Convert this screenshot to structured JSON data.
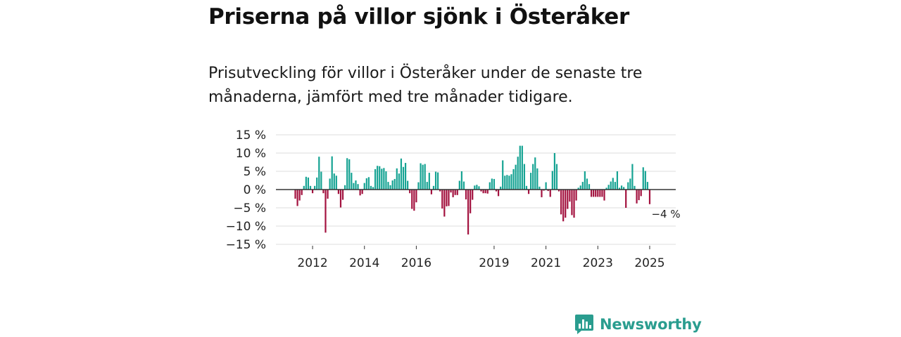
{
  "title": "Priserna på villor sjönk i Österåker",
  "subtitle": "Prisutveckling för villor i Österåker under de senaste tre månaderna, jämfört med tre månader tidigare.",
  "brand": {
    "name": "Newsworthy",
    "color": "#2a9d8f"
  },
  "colors": {
    "positive": "#16a393",
    "negative": "#a3123f",
    "grid": "#dddddd",
    "zero": "#333333"
  },
  "chart_data": {
    "type": "bar",
    "title": "Priserna på villor sjönk i Österåker",
    "ylabel": "",
    "xlabel": "",
    "ylim": [
      -15,
      15
    ],
    "yticks": [
      15,
      10,
      5,
      0,
      -5,
      -10,
      -15
    ],
    "ytick_labels": [
      "15 %",
      "10 %",
      "5 %",
      "0 %",
      "−5 %",
      "−10 %",
      "−15 %"
    ],
    "x_ticks": [
      {
        "label": "2012",
        "index": 8
      },
      {
        "label": "2014",
        "index": 32
      },
      {
        "label": "2016",
        "index": 56
      },
      {
        "label": "2019",
        "index": 92
      },
      {
        "label": "2021",
        "index": 116
      },
      {
        "label": "2023",
        "index": 140
      },
      {
        "label": "2025",
        "index": 164
      }
    ],
    "annotation": {
      "text": "−4 %",
      "index": 171
    },
    "values": [
      -2.5,
      -4.5,
      -3,
      -1.5,
      1,
      3.5,
      3.3,
      1,
      -1,
      1,
      3.3,
      9,
      4.9,
      -1,
      -11.8,
      -2.5,
      3,
      9.1,
      4.4,
      3.8,
      -1.2,
      -4.9,
      -2.8,
      1.2,
      8.6,
      8.3,
      4.6,
      1.8,
      2.5,
      1.5,
      -1.6,
      -1.2,
      1.8,
      3.1,
      3.4,
      1,
      0.7,
      5.6,
      6.5,
      6.4,
      5.7,
      5.9,
      5,
      2.1,
      1.2,
      2.5,
      2.9,
      5.8,
      4.4,
      8.5,
      6.2,
      7.3,
      2.4,
      -1,
      -5.3,
      -5.8,
      -3.5,
      2,
      7.2,
      6.8,
      7,
      2.1,
      4.6,
      -1.3,
      1,
      4.9,
      4.7,
      -0.5,
      -5.2,
      -7.4,
      -4.6,
      -4.5,
      -0.8,
      -2.1,
      -1.5,
      -1.5,
      2.4,
      5,
      2.2,
      -2.7,
      -12.3,
      -6.5,
      -2.8,
      1.1,
      1.3,
      0.9,
      -0.5,
      -1,
      -1,
      -1.1,
      2,
      3,
      2.9,
      -0.5,
      -1.8,
      0.8,
      8,
      3.8,
      4,
      3.8,
      4.2,
      5.6,
      6.8,
      9,
      12,
      12,
      7,
      1,
      -1.2,
      4.6,
      7,
      8.8,
      5.8,
      0.8,
      -2.1,
      -0.3,
      2,
      -0.4,
      -2,
      5.1,
      10,
      7,
      -0.5,
      -6.8,
      -8.7,
      -7.7,
      -5.3,
      -3.3,
      -7,
      -7.7,
      -3,
      0.5,
      1.1,
      2.1,
      5,
      3,
      1.5,
      -2,
      -2,
      -2,
      -2,
      -2,
      -2,
      -3,
      0.5,
      1.3,
      2.2,
      3.2,
      2.1,
      5,
      0.5,
      1.1,
      0.7,
      -5,
      2,
      3,
      7,
      1,
      -3.8,
      -2.9,
      -1.8,
      6.1,
      5.1,
      2.1,
      -4
    ]
  }
}
